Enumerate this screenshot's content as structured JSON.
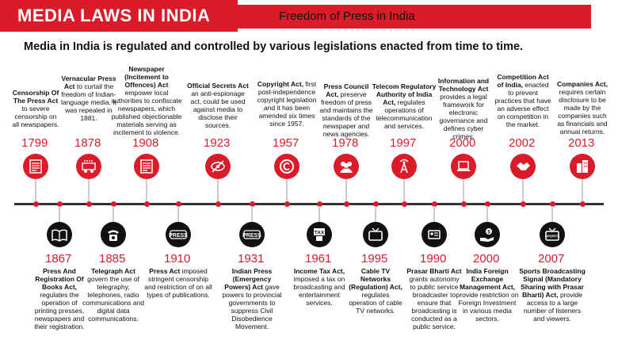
{
  "header": {
    "title": "MEDIA LAWS IN INDIA",
    "subtitle": "Freedom of Press in India"
  },
  "intro": "Media in India is regulated and controlled by various legislations enacted from time to time.",
  "top_events": [
    {
      "year": "1799",
      "name": "Censorship Of The Press Act",
      "desc": "to severe censorship on all newspapers.",
      "icon": "newspaper-icon"
    },
    {
      "year": "1878",
      "name": "Vernacular Press Act",
      "desc": "to curtail the freedom of Indian-language media. It was repealed in 1881.",
      "icon": "printing-icon"
    },
    {
      "year": "1908",
      "name": "Newspaper (Incitement to Offences) Act",
      "desc": "empower local authorities to confiscate newspapers, which published objectionable materials serving as incitement to violence.",
      "icon": "newspaper-icon"
    },
    {
      "year": "1923",
      "name": "Official Secrets Act",
      "desc": "an anti-espionage act, could be used against media to disclose their sources.",
      "icon": "no-eye-icon"
    },
    {
      "year": "1957",
      "name": "Copyright Act,",
      "desc": "first post-independence copyright legislation and it has been amended six times since 1957.",
      "icon": "copyright-icon"
    },
    {
      "year": "1978",
      "name": "Press Council Act,",
      "desc": "preserve freedom of press and maintains the standards of the newspaper and news agencies.",
      "icon": "people-icon"
    },
    {
      "year": "1997",
      "name": "Telecom Regulatory Authority of India Act,",
      "desc": "regulates operations of telecommunication and services.",
      "icon": "tower-icon"
    },
    {
      "year": "2000",
      "name": "Information and Technology Act",
      "desc": "provides a legal framework for electronic governance and defines cyber crimes.",
      "icon": "laptop-icon"
    },
    {
      "year": "2002",
      "name": "Competition Act of India,",
      "desc": "enacted to prevent practices that have an adverse effect on competition in the market.",
      "icon": "handshake-icon"
    },
    {
      "year": "2013",
      "name": "Companies Act,",
      "desc": "requires certain disclosure to be made by the companies such as financials and annual returns.",
      "icon": "buildings-icon"
    }
  ],
  "bottom_events": [
    {
      "year": "1867",
      "name": "Press And Registration Of Books Act,",
      "desc": "regulates the operation of printing presses, newspapers and their registration.",
      "icon": "book-icon"
    },
    {
      "year": "1885",
      "name": "Telegraph Act",
      "desc": "govern the use of telegraphy, telephones, radio communications and digital data communications.",
      "icon": "telephone-icon"
    },
    {
      "year": "1910",
      "name": "Press Act",
      "desc": "imposed stringent censorship and restriction of on all types of publications.",
      "icon": "press-stamp-icon",
      "badge": "PRESS"
    },
    {
      "year": "1931",
      "name": "Indian Press (Emergency Powers) Act",
      "desc": "gave powers to provincial governments to suppress Civil Disobedience Movement.",
      "icon": "press-stamp-icon",
      "badge": "PRESS"
    },
    {
      "year": "1961",
      "name": "Income Tax Act,",
      "desc": "imposed a tax on broadcasting and entertainment services.",
      "icon": "tax-icon",
      "badge": "TAX"
    },
    {
      "year": "1995",
      "name": "Cable TV Networks (Regulation) Act,",
      "desc": "regulates operation of cable TV networks.",
      "icon": "tv-icon"
    },
    {
      "year": "1990",
      "name": "Prasar Bharti Act",
      "desc": "grants autonomy to public service broadcaster to ensure that broadcasting is conducted as a public service.",
      "icon": "broadcast-icon"
    },
    {
      "year": "2000",
      "name": "India Foreign Exchange Management Act,",
      "desc": "provide restriction on Foreign Investment in various media sectors.",
      "icon": "money-hand-icon"
    },
    {
      "year": "2007",
      "name": "Sports Broadcasting Signal (Mandatory Sharing with Prasar Bharti) Act,",
      "desc": "provide access to a large number of listeners and viewers.",
      "icon": "sports-tv-icon",
      "badge": "SPORTS"
    }
  ]
}
